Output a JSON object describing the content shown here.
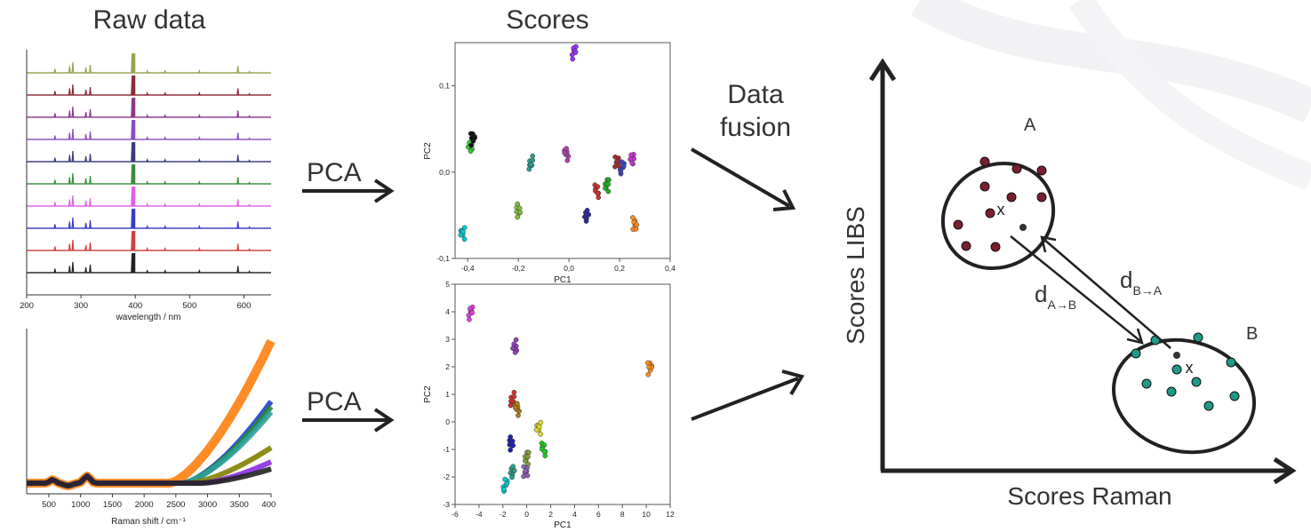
{
  "headings": {
    "raw_data": "Raw data",
    "scores": "Scores"
  },
  "arrows": {
    "pca_top": "PCA",
    "pca_bottom": "PCA",
    "data_fusion_line1": "Data",
    "data_fusion_line2": "fusion"
  },
  "libs_spectra": {
    "xlabel": "wavelength / nm",
    "xticks": [
      "200",
      "300",
      "400",
      "500",
      "600"
    ],
    "colors": [
      "#9aa050",
      "#8c2a3a",
      "#8a3a8c",
      "#8a4ec0",
      "#3a3a7a",
      "#3c8c3c",
      "#e060e0",
      "#3a3ac8",
      "#d04040",
      "#222222"
    ]
  },
  "raman_spectra": {
    "xlabel": "Raman shift / cm⁻¹",
    "xticks": [
      "500",
      "1000",
      "1500",
      "2000",
      "2500",
      "3000",
      "3500",
      "4000"
    ],
    "colors": [
      "#ff7f0e",
      "#1f3fd0",
      "#2a8a2a",
      "#2ca0a0",
      "#808000",
      "#8a2be2",
      "#222222"
    ]
  },
  "chart_data": [
    {
      "type": "scatter",
      "title": "",
      "xlabel": "PC1",
      "ylabel": "PC2",
      "xlim": [
        -0.45,
        0.4
      ],
      "ylim": [
        -0.1,
        0.15
      ],
      "xticks": [
        "-0,4",
        "-0,2",
        "0,0",
        "0,2",
        "0,4"
      ],
      "yticks": [
        "0,1",
        "0,0",
        "-0,1"
      ],
      "clusters": [
        {
          "color": "#9b30ff",
          "x": 0.02,
          "y": 0.14
        },
        {
          "color": "#33cc33",
          "x": -0.39,
          "y": 0.03
        },
        {
          "color": "#111111",
          "x": -0.38,
          "y": 0.04
        },
        {
          "color": "#2aa090",
          "x": -0.15,
          "y": 0.01
        },
        {
          "color": "#b040b0",
          "x": -0.01,
          "y": 0.022
        },
        {
          "color": "#80c040",
          "x": -0.2,
          "y": -0.045
        },
        {
          "color": "#00cccc",
          "x": -0.42,
          "y": -0.07
        },
        {
          "color": "#d03030",
          "x": 0.11,
          "y": -0.022
        },
        {
          "color": "#2a2aa0",
          "x": 0.07,
          "y": -0.05
        },
        {
          "color": "#22aa22",
          "x": 0.15,
          "y": -0.015
        },
        {
          "color": "#a03030",
          "x": 0.19,
          "y": 0.012
        },
        {
          "color": "#4040c0",
          "x": 0.21,
          "y": 0.005
        },
        {
          "color": "#cc33cc",
          "x": 0.25,
          "y": 0.015
        },
        {
          "color": "#ff8c1a",
          "x": 0.26,
          "y": -0.06
        }
      ]
    },
    {
      "type": "scatter",
      "title": "",
      "xlabel": "PC1",
      "ylabel": "PC2",
      "xlim": [
        -6,
        12
      ],
      "ylim": [
        -3,
        5
      ],
      "xticks": [
        "-6",
        "-4",
        "-2",
        "0",
        "2",
        "4",
        "6",
        "8",
        "10",
        "12"
      ],
      "yticks": [
        "5",
        "4",
        "3",
        "2",
        "1",
        "0",
        "-1",
        "-2",
        "-3"
      ],
      "clusters": [
        {
          "color": "#e040e0",
          "x": -4.7,
          "y": 4.0
        },
        {
          "color": "#9040c0",
          "x": -1.0,
          "y": 2.7
        },
        {
          "color": "#ff8c1a",
          "x": 10.3,
          "y": 2.0
        },
        {
          "color": "#d03030",
          "x": -1.2,
          "y": 0.8
        },
        {
          "color": "#b08020",
          "x": -0.8,
          "y": 0.5
        },
        {
          "color": "#2020b0",
          "x": -1.3,
          "y": -0.8
        },
        {
          "color": "#dddd22",
          "x": 1.0,
          "y": -0.2
        },
        {
          "color": "#22cc22",
          "x": 1.4,
          "y": -1.0
        },
        {
          "color": "#2aa090",
          "x": -1.2,
          "y": -1.8
        },
        {
          "color": "#80a040",
          "x": 0.0,
          "y": -1.3
        },
        {
          "color": "#9060b0",
          "x": -0.1,
          "y": -1.8
        },
        {
          "color": "#00cccc",
          "x": -1.8,
          "y": -2.3
        }
      ]
    }
  ],
  "fusion_plot": {
    "xlabel": "Scores Raman",
    "ylabel": "Scores LIBS",
    "cluster_a_label": "A",
    "cluster_b_label": "B",
    "d_ab_main": "d",
    "d_ab_sub": "A→B",
    "d_ba_main": "d",
    "d_ba_sub": "B→A",
    "centroid_mark": "x",
    "cluster_a_color": "#7a1f2e",
    "cluster_b_color": "#1f9a88"
  }
}
